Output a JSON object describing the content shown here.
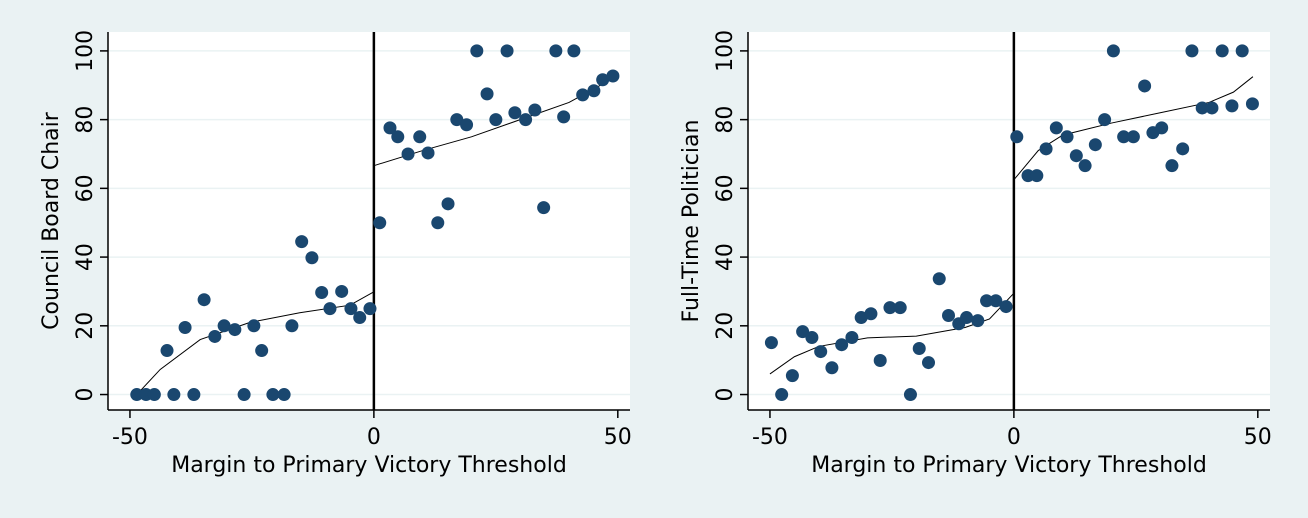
{
  "chart_data": [
    {
      "type": "scatter",
      "xlabel": "Margin to Primary Victory Threshold",
      "ylabel": "Council Board Chair",
      "color": "#1a476f",
      "threshold": 0,
      "x": [
        -48.6,
        -46.7,
        -45,
        -42.4,
        -41,
        -38.7,
        -36.9,
        -34.8,
        -32.6,
        -30.7,
        -28.5,
        -26.6,
        -24.6,
        -23,
        -20.7,
        -18.4,
        -16.8,
        -14.8,
        -12.7,
        -10.7,
        -9,
        -6.6,
        -4.7,
        -2.9,
        -0.8,
        1.2,
        3.3,
        4.9,
        7,
        9.4,
        11.1,
        13.1,
        15.2,
        17,
        19,
        21.1,
        23.2,
        25,
        27.3,
        28.9,
        31.1,
        33,
        34.8,
        37.3,
        38.9,
        41,
        42.8,
        45.1,
        46.9,
        49
      ],
      "values": [
        0,
        0,
        0,
        12.8,
        0,
        19.5,
        0,
        27.6,
        16.9,
        20,
        18.9,
        0,
        20,
        12.8,
        0,
        0,
        20,
        44.5,
        39.8,
        29.7,
        25,
        30,
        25,
        22.4,
        25,
        50,
        77.6,
        75,
        70,
        75,
        70.3,
        50,
        55.5,
        80,
        78.5,
        100,
        87.5,
        80,
        100,
        82,
        80,
        82.8,
        54.4,
        100,
        80.8,
        100,
        87.2,
        88.4,
        91.6,
        92.7
      ],
      "fit": [
        {
          "x": [
            -48,
            -43.8,
            -35.6,
            -25.4,
            -15.2,
            -4.9,
            0
          ],
          "values": [
            0.9,
            7.3,
            16,
            21,
            23.8,
            26,
            29.9
          ]
        },
        {
          "x": [
            0,
            10,
            20,
            30,
            40,
            49
          ],
          "values": [
            66.6,
            71,
            75,
            80,
            85,
            92
          ]
        }
      ],
      "xlim": [
        -54.5,
        52.5
      ],
      "ylim": [
        -4.5,
        105.5
      ],
      "xticks": [
        -50,
        0,
        50
      ],
      "yticks": [
        0,
        20,
        40,
        60,
        80,
        100
      ],
      "grid": true
    },
    {
      "type": "scatter",
      "xlabel": "Margin to Primary Victory Threshold",
      "ylabel": "Full-Time Politician",
      "color": "#1a476f",
      "threshold": 0,
      "x": [
        -49.7,
        -47.6,
        -45.4,
        -43.3,
        -41.4,
        -39.6,
        -37.3,
        -35.3,
        -33.2,
        -31.3,
        -29.3,
        -27.4,
        -25.4,
        -23.3,
        -21.2,
        -19.4,
        -17.5,
        -15.3,
        -13.4,
        -11.3,
        -9.7,
        -7.4,
        -5.6,
        -3.7,
        -1.6,
        0.6,
        2.9,
        4.7,
        6.6,
        8.7,
        10.9,
        12.8,
        14.6,
        16.7,
        18.6,
        20.4,
        22.5,
        24.5,
        26.8,
        28.5,
        30.3,
        32.4,
        34.6,
        36.5,
        38.6,
        40.6,
        42.7,
        44.7,
        46.8,
        48.9
      ],
      "values": [
        15.1,
        0,
        5.5,
        18.3,
        16.6,
        12.5,
        7.8,
        14.5,
        16.6,
        22.4,
        23.5,
        9.9,
        25.3,
        25.3,
        0,
        13.4,
        9.3,
        33.7,
        23,
        20.6,
        22.4,
        21.5,
        27.3,
        27.3,
        25.6,
        75,
        63.7,
        63.7,
        71.5,
        77.6,
        75,
        69.5,
        66.6,
        72.7,
        80,
        100,
        75,
        75,
        89.8,
        76.2,
        77.6,
        66.6,
        71.5,
        100,
        83.4,
        83.4,
        100,
        84,
        100,
        84.6
      ],
      "fit": [
        {
          "x": [
            -50,
            -45,
            -40,
            -30,
            -20,
            -10,
            -5,
            0
          ],
          "values": [
            6,
            11,
            14,
            16.5,
            17,
            19.5,
            22,
            29.5
          ]
        },
        {
          "x": [
            0,
            5,
            10,
            20,
            30,
            40,
            45,
            49
          ],
          "values": [
            62.5,
            71,
            75.5,
            79,
            82,
            85,
            88,
            92.5
          ]
        }
      ],
      "xlim": [
        -54.5,
        52.5
      ],
      "ylim": [
        -4.5,
        105.5
      ],
      "xticks": [
        -50,
        0,
        50
      ],
      "yticks": [
        0,
        20,
        40,
        60,
        80,
        100
      ],
      "grid": true
    }
  ]
}
